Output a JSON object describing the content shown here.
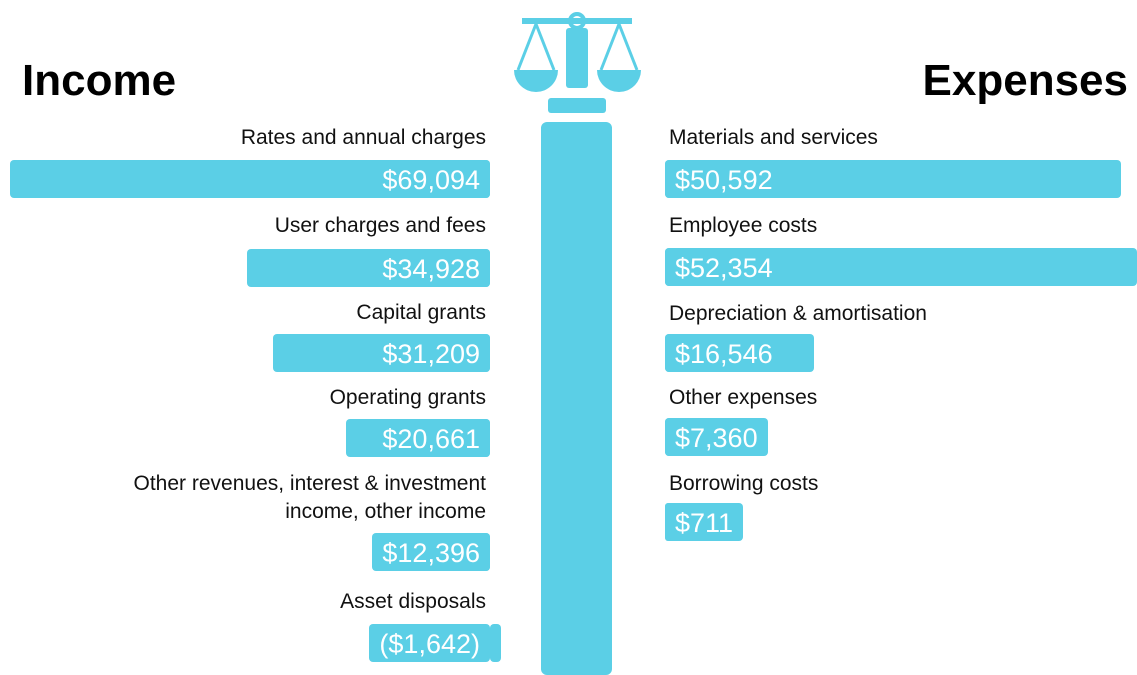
{
  "chart_data": [
    {
      "type": "bar",
      "title": "Income",
      "color": "#5bcfe6",
      "categories": [
        "Rates and annual charges",
        "User charges and fees",
        "Capital grants",
        "Operating grants",
        "Other revenues, interest & investment income, other income",
        "Asset disposals"
      ],
      "values": [
        69094,
        34928,
        31209,
        20661,
        12396,
        -1642
      ],
      "value_labels": [
        "$69,094",
        "$34,928",
        "$31,209",
        "$20,661",
        "$12,396",
        "($1,642)"
      ]
    },
    {
      "type": "bar",
      "title": "Expenses",
      "color": "#5bcfe6",
      "categories": [
        "Materials and services",
        "Employee costs",
        "Depreciation & amortisation",
        "Other expenses",
        "Borrowing costs"
      ],
      "values": [
        50592,
        52354,
        16546,
        7360,
        711
      ],
      "value_labels": [
        "$50,592",
        "$52,354",
        "$16,546",
        "$7,360",
        "$711"
      ]
    }
  ]
}
